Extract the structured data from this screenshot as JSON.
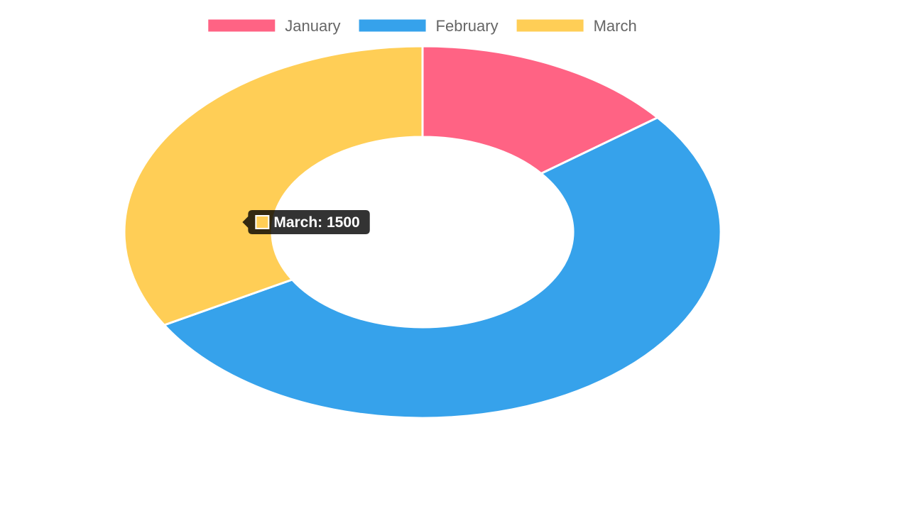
{
  "chart_data": {
    "type": "doughnut",
    "categories": [
      "January",
      "February",
      "March"
    ],
    "values": [
      650,
      2350,
      1500
    ],
    "colors": [
      "#ff6384",
      "#36a2eb",
      "#ffce56"
    ],
    "legend_position": "top",
    "tooltip": {
      "label": "March",
      "value": 1500,
      "text": "March: 1500",
      "color": "#ffce56"
    }
  }
}
